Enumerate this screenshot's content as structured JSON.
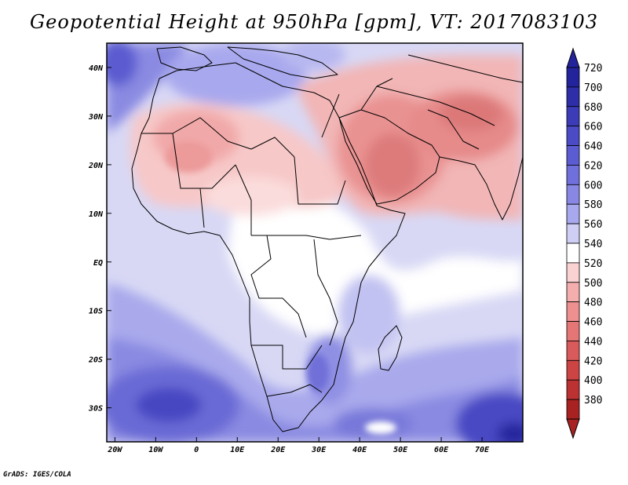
{
  "title": "Geopotential Height at 950hPa [gpm], VT: 2017083103",
  "credit": "GrADS: IGES/COLA",
  "map": {
    "lon_range": [
      -22,
      80
    ],
    "lat_range": [
      -37,
      45
    ],
    "lon_ticks": [
      {
        "value": -20,
        "label": "20W"
      },
      {
        "value": -10,
        "label": "10W"
      },
      {
        "value": 0,
        "label": "0"
      },
      {
        "value": 10,
        "label": "10E"
      },
      {
        "value": 20,
        "label": "20E"
      },
      {
        "value": 30,
        "label": "30E"
      },
      {
        "value": 40,
        "label": "40E"
      },
      {
        "value": 50,
        "label": "50E"
      },
      {
        "value": 60,
        "label": "60E"
      },
      {
        "value": 70,
        "label": "70E"
      }
    ],
    "lat_ticks": [
      {
        "value": 40,
        "label": "40N"
      },
      {
        "value": 30,
        "label": "30N"
      },
      {
        "value": 20,
        "label": "20N"
      },
      {
        "value": 10,
        "label": "10N"
      },
      {
        "value": 0,
        "label": "EQ"
      },
      {
        "value": -10,
        "label": "10S"
      },
      {
        "value": -20,
        "label": "20S"
      },
      {
        "value": -30,
        "label": "30S"
      }
    ]
  },
  "colorbar": {
    "labels": [
      "720",
      "700",
      "680",
      "660",
      "640",
      "620",
      "600",
      "580",
      "560",
      "540",
      "520",
      "500",
      "480",
      "460",
      "440",
      "420",
      "400",
      "380"
    ],
    "colors": [
      "#23239c",
      "#2e2ea8",
      "#3c3cb8",
      "#4b4bc6",
      "#5c5cd2",
      "#7070dc",
      "#8888e4",
      "#a8a8ee",
      "#cfcff6",
      "#ffffff",
      "#fbd2d2",
      "#f4aeae",
      "#ee9090",
      "#e47676",
      "#d85a5a",
      "#cc4444",
      "#bc3232",
      "#a82222"
    ]
  },
  "fields": [
    {
      "name": "sahara-high-cell",
      "level": "500"
    },
    {
      "name": "arabia-high-cell",
      "level": "460"
    },
    {
      "name": "south-atlantic-low-cell",
      "level": "660"
    },
    {
      "name": "indian-ocean-low-cell",
      "level": "700"
    }
  ]
}
